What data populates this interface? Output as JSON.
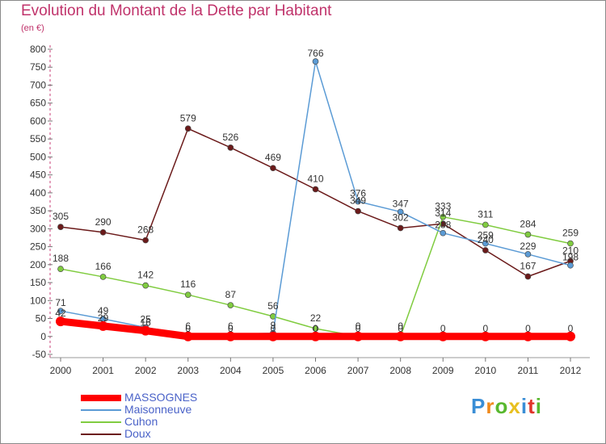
{
  "header": {
    "title": "Evolution du Montant de la Dette par Habitant",
    "subtitle": "(en €)"
  },
  "logo_text": "Proxiti",
  "chart_data": {
    "type": "line",
    "title": "Evolution du Montant de la Dette par Habitant",
    "subtitle": "(en €)",
    "xlabel": "",
    "ylabel": "",
    "x": [
      "2000",
      "2001",
      "2002",
      "2003",
      "2004",
      "2005",
      "2006",
      "2007",
      "2008",
      "2009",
      "2010",
      "2011",
      "2012"
    ],
    "ylim": [
      -50,
      800
    ],
    "yticks": [
      -50,
      0,
      50,
      100,
      150,
      200,
      250,
      300,
      350,
      400,
      450,
      500,
      550,
      600,
      650,
      700,
      750,
      800
    ],
    "grid": false,
    "legend_position": "bottom-left",
    "series": [
      {
        "name": "MASSOGNES",
        "color": "#ff0000",
        "values": [
          42,
          29,
          16,
          0,
          0,
          0,
          0,
          0,
          0,
          0,
          0,
          0,
          0
        ],
        "labels": [
          "42",
          "29",
          "16",
          "0",
          "0",
          "0",
          "0",
          "0",
          "0",
          "0",
          "0",
          "0",
          "0"
        ]
      },
      {
        "name": "Maisonneuve",
        "color": "#5b9bd5",
        "values": [
          71,
          49,
          25,
          6,
          6,
          9,
          766,
          376,
          347,
          288,
          259,
          229,
          198
        ],
        "labels": [
          "71",
          "49",
          "25",
          "6",
          "6",
          "9",
          "766",
          "376",
          "347",
          "288",
          "259",
          "229",
          "198"
        ]
      },
      {
        "name": "Cuhon",
        "color": "#80cc40",
        "values": [
          188,
          166,
          142,
          116,
          87,
          56,
          22,
          0,
          0,
          333,
          311,
          284,
          259
        ],
        "labels": [
          "188",
          "166",
          "142",
          "116",
          "87",
          "56",
          "22",
          "0",
          "0",
          "333",
          "311",
          "284",
          "259"
        ]
      },
      {
        "name": "Doux",
        "color": "#6b1a1a",
        "values": [
          305,
          290,
          268,
          579,
          526,
          469,
          410,
          349,
          302,
          314,
          240,
          167,
          210
        ],
        "labels": [
          "305",
          "290",
          "268",
          "579",
          "526",
          "469",
          "410",
          "349",
          "302",
          "314",
          "240",
          "167",
          "210"
        ]
      }
    ]
  }
}
